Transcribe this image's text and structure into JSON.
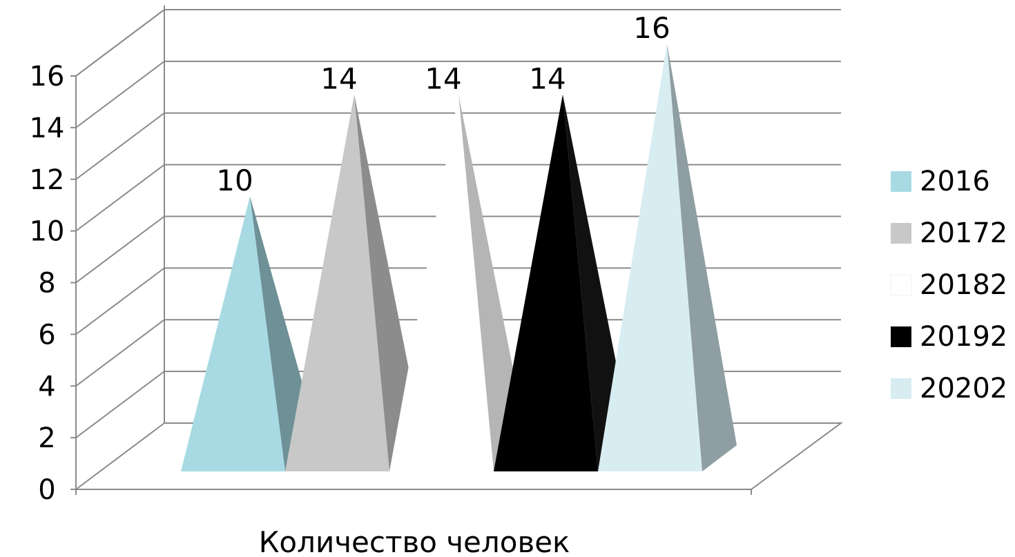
{
  "chart_data": {
    "type": "bar",
    "bar_shape": "pyramid",
    "three_d": true,
    "category": "Количество человек",
    "xlabel": "Количество человек",
    "ylim": [
      0,
      16
    ],
    "ytick_step": 2,
    "yticks": [
      "0",
      "2",
      "4",
      "6",
      "8",
      "10",
      "12",
      "14",
      "16"
    ],
    "grid": true,
    "legend_position": "right",
    "series": [
      {
        "name": "2016",
        "value": 10,
        "label": "10",
        "color": "#A8DAE3",
        "side_color": "#6E9097"
      },
      {
        "name": "20172",
        "value": 14,
        "label": "14",
        "color": "#C8C8C8",
        "side_color": "#8C8C8C"
      },
      {
        "name": "20182",
        "value": 14,
        "label": "14",
        "color": "#FFFFFF",
        "side_color": "#B5B5B5"
      },
      {
        "name": "20192",
        "value": 14,
        "label": "14",
        "color": "#000000",
        "side_color": "#111111"
      },
      {
        "name": "20202",
        "value": 16,
        "label": "16",
        "color": "#D8EDF2",
        "side_color": "#8E9EA2"
      }
    ]
  }
}
